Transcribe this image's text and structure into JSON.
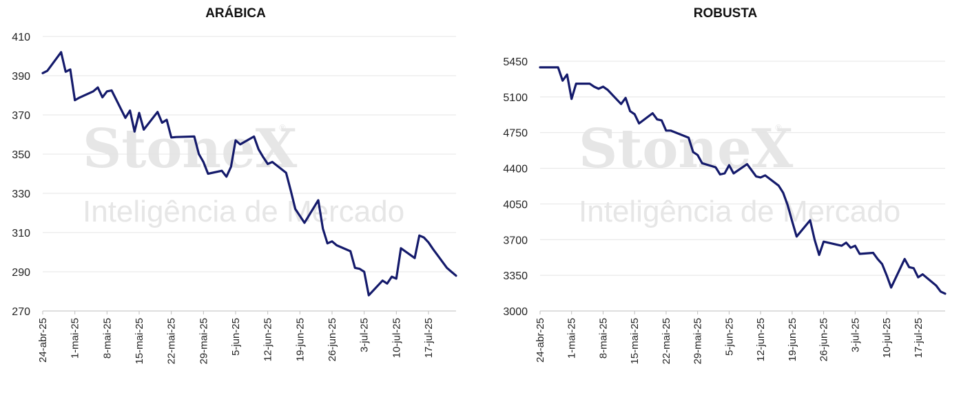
{
  "watermark": {
    "brand": "StoneX",
    "registered": "®",
    "subtitle": "Inteligência de Mercado"
  },
  "chart_data": [
    {
      "type": "line",
      "title": "ARÁBICA",
      "ylim": [
        270,
        410
      ],
      "yticks": [
        270,
        290,
        310,
        330,
        350,
        370,
        390,
        410
      ],
      "xlim": [
        "2025-04-24",
        "2025-07-23"
      ],
      "xticks": [
        "2025-04-24",
        "2025-05-01",
        "2025-05-08",
        "2025-05-15",
        "2025-05-22",
        "2025-05-29",
        "2025-06-05",
        "2025-06-12",
        "2025-06-19",
        "2025-06-26",
        "2025-07-03",
        "2025-07-10",
        "2025-07-17"
      ],
      "xtick_labels": [
        "24-abr-25",
        "1-mai-25",
        "8-mai-25",
        "15-mai-25",
        "22-mai-25",
        "29-mai-25",
        "5-jun-25",
        "12-jun-25",
        "19-jun-25",
        "26-jun-25",
        "3-jul-25",
        "10-jul-25",
        "17-jul-25"
      ],
      "grid": true,
      "color": "#141a6b",
      "series": [
        {
          "x": [
            "2025-04-24",
            "2025-04-25",
            "2025-04-28",
            "2025-04-29",
            "2025-04-30",
            "2025-05-01",
            "2025-05-02",
            "2025-05-05",
            "2025-05-06",
            "2025-05-07",
            "2025-05-08",
            "2025-05-09",
            "2025-05-12",
            "2025-05-13",
            "2025-05-14",
            "2025-05-15",
            "2025-05-16",
            "2025-05-19",
            "2025-05-20",
            "2025-05-21",
            "2025-05-22",
            "2025-05-23",
            "2025-05-27",
            "2025-05-28",
            "2025-05-29",
            "2025-05-30",
            "2025-06-02",
            "2025-06-03",
            "2025-06-04",
            "2025-06-05",
            "2025-06-06",
            "2025-06-09",
            "2025-06-10",
            "2025-06-11",
            "2025-06-12",
            "2025-06-13",
            "2025-06-16",
            "2025-06-17",
            "2025-06-18",
            "2025-06-19",
            "2025-06-20",
            "2025-06-23",
            "2025-06-24",
            "2025-06-25",
            "2025-06-26",
            "2025-06-27",
            "2025-06-30",
            "2025-07-01",
            "2025-07-02",
            "2025-07-03",
            "2025-07-04",
            "2025-07-07",
            "2025-07-08",
            "2025-07-09",
            "2025-07-10",
            "2025-07-11",
            "2025-07-14",
            "2025-07-15",
            "2025-07-16",
            "2025-07-17",
            "2025-07-18",
            "2025-07-21",
            "2025-07-22",
            "2025-07-23"
          ],
          "values": [
            391.3,
            392.5,
            402.0,
            392.0,
            393.2,
            377.5,
            378.8,
            382.0,
            384.0,
            379.0,
            382.0,
            382.5,
            368.5,
            372.2,
            361.5,
            371.0,
            362.5,
            371.5,
            366.0,
            367.5,
            358.5,
            358.7,
            359.0,
            350.0,
            346.0,
            340.0,
            341.5,
            338.5,
            343.5,
            357.0,
            355.0,
            359.0,
            352.5,
            348.5,
            345.0,
            346.0,
            340.5,
            331.5,
            322.0,
            318.5,
            315.0,
            326.5,
            312.0,
            304.5,
            305.5,
            303.5,
            300.5,
            292.0,
            291.5,
            290.0,
            278.0,
            285.5,
            284.0,
            287.5,
            286.5,
            302.0,
            297.0,
            308.5,
            307.5,
            305.0,
            301.5,
            292.0,
            290.0,
            288.0
          ]
        }
      ]
    },
    {
      "type": "line",
      "title": "ROBUSTA",
      "ylim": [
        3000,
        5450
      ],
      "yticks": [
        3000,
        3350,
        3700,
        4050,
        4400,
        4750,
        5100,
        5450
      ],
      "xlim": [
        "2025-04-24",
        "2025-07-23"
      ],
      "xticks": [
        "2025-04-24",
        "2025-05-01",
        "2025-05-08",
        "2025-05-15",
        "2025-05-22",
        "2025-05-29",
        "2025-06-05",
        "2025-06-12",
        "2025-06-19",
        "2025-06-26",
        "2025-07-03",
        "2025-07-10",
        "2025-07-17"
      ],
      "xtick_labels": [
        "24-abr-25",
        "1-mai-25",
        "8-mai-25",
        "15-mai-25",
        "22-mai-25",
        "29-mai-25",
        "5-jun-25",
        "12-jun-25",
        "19-jun-25",
        "26-jun-25",
        "3-jul-25",
        "10-jul-25",
        "17-jul-25"
      ],
      "grid": true,
      "color": "#141a6b",
      "series": [
        {
          "x": [
            "2025-04-24",
            "2025-04-25",
            "2025-04-28",
            "2025-04-29",
            "2025-04-30",
            "2025-05-01",
            "2025-05-02",
            "2025-05-05",
            "2025-05-06",
            "2025-05-07",
            "2025-05-08",
            "2025-05-09",
            "2025-05-12",
            "2025-05-13",
            "2025-05-14",
            "2025-05-15",
            "2025-05-16",
            "2025-05-19",
            "2025-05-20",
            "2025-05-21",
            "2025-05-22",
            "2025-05-23",
            "2025-05-27",
            "2025-05-28",
            "2025-05-29",
            "2025-05-30",
            "2025-06-02",
            "2025-06-03",
            "2025-06-04",
            "2025-06-05",
            "2025-06-06",
            "2025-06-09",
            "2025-06-10",
            "2025-06-11",
            "2025-06-12",
            "2025-06-13",
            "2025-06-16",
            "2025-06-17",
            "2025-06-18",
            "2025-06-19",
            "2025-06-20",
            "2025-06-23",
            "2025-06-24",
            "2025-06-25",
            "2025-06-26",
            "2025-06-27",
            "2025-06-30",
            "2025-07-01",
            "2025-07-02",
            "2025-07-03",
            "2025-07-04",
            "2025-07-07",
            "2025-07-08",
            "2025-07-09",
            "2025-07-10",
            "2025-07-11",
            "2025-07-14",
            "2025-07-15",
            "2025-07-16",
            "2025-07-17",
            "2025-07-18",
            "2025-07-21",
            "2025-07-22",
            "2025-07-23"
          ],
          "values": [
            5390,
            5390,
            5390,
            5260,
            5320,
            5080,
            5230,
            5230,
            5200,
            5180,
            5200,
            5170,
            5030,
            5090,
            4960,
            4930,
            4840,
            4940,
            4880,
            4870,
            4770,
            4770,
            4700,
            4560,
            4530,
            4450,
            4410,
            4340,
            4350,
            4430,
            4350,
            4440,
            4380,
            4320,
            4310,
            4330,
            4230,
            4160,
            4040,
            3880,
            3730,
            3890,
            3700,
            3550,
            3680,
            3670,
            3640,
            3670,
            3620,
            3640,
            3560,
            3570,
            3510,
            3460,
            3350,
            3230,
            3510,
            3430,
            3420,
            3330,
            3360,
            3250,
            3190,
            3170
          ]
        }
      ]
    }
  ]
}
